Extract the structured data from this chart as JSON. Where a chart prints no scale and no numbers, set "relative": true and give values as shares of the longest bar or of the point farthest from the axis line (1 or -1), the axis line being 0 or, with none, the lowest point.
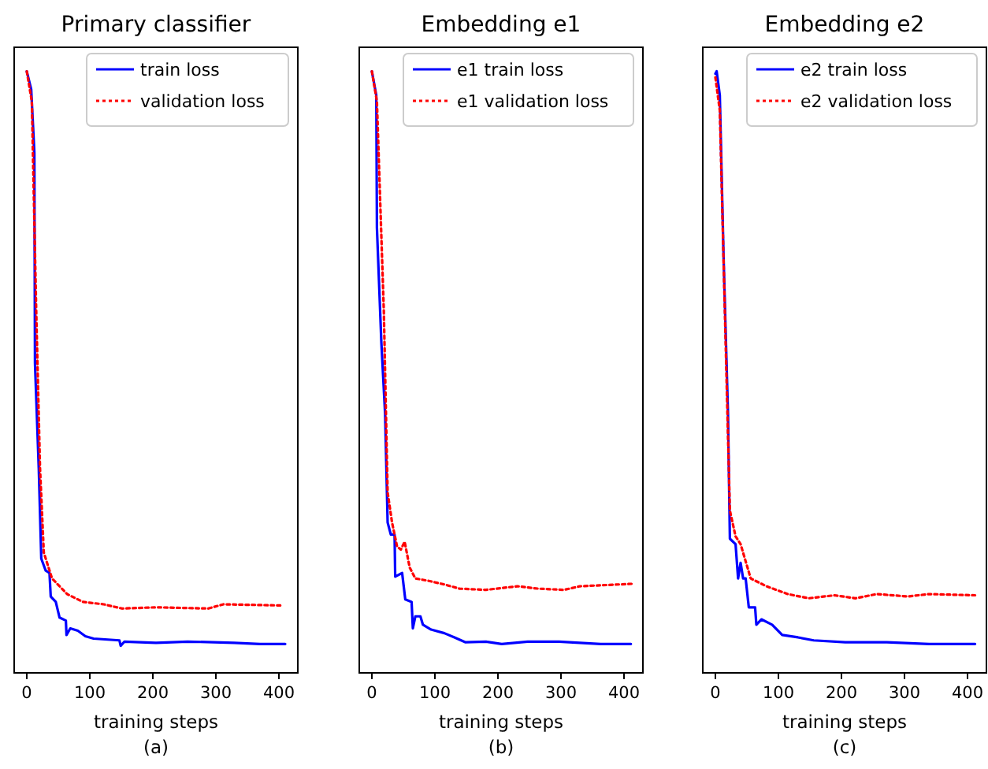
{
  "chart_data": [
    {
      "type": "line",
      "title": "Primary classifier",
      "xlabel": "training steps",
      "annotations": [
        "(a)"
      ],
      "relative": true,
      "xlim": [
        -20,
        430
      ],
      "xticks": [
        0,
        100,
        200,
        300,
        400
      ],
      "legend": "top right",
      "series": [
        {
          "name": "train loss",
          "color": "#0000ff",
          "line_style": "solid",
          "x": [
            0,
            7,
            12,
            13,
            19,
            23,
            30,
            36,
            38,
            46,
            52,
            62,
            63,
            69,
            81,
            93,
            106,
            147,
            149,
            155,
            205,
            255,
            329,
            370,
            410
          ],
          "values": [
            1.0,
            0.97,
            0.865,
            0.515,
            0.34,
            0.19,
            0.17,
            0.166,
            0.127,
            0.118,
            0.092,
            0.087,
            0.063,
            0.074,
            0.07,
            0.061,
            0.057,
            0.054,
            0.045,
            0.052,
            0.05,
            0.052,
            0.05,
            0.048,
            0.048
          ]
        },
        {
          "name": "validation loss",
          "color": "#ff0000",
          "line_style": "dotted",
          "x": [
            0,
            8,
            15,
            21,
            27,
            40,
            64,
            89,
            122,
            151,
            205,
            288,
            312,
            407
          ],
          "values": [
            1.0,
            0.95,
            0.6,
            0.34,
            0.2,
            0.157,
            0.131,
            0.118,
            0.114,
            0.107,
            0.109,
            0.107,
            0.114,
            0.112
          ]
        }
      ]
    },
    {
      "type": "line",
      "title": "Embedding e1",
      "xlabel": "training steps",
      "annotations": [
        "(b)"
      ],
      "relative": true,
      "xlim": [
        -20,
        430
      ],
      "xticks": [
        0,
        100,
        200,
        300,
        400
      ],
      "legend": "top right",
      "series": [
        {
          "name": "e1 train loss",
          "color": "#0000ff",
          "line_style": "solid",
          "x": [
            0,
            7,
            8,
            15,
            21,
            25,
            30,
            36,
            37,
            48,
            53,
            63,
            65,
            69,
            77,
            81,
            94,
            115,
            131,
            148,
            181,
            206,
            247,
            297,
            330,
            363,
            411
          ],
          "values": [
            1.0,
            0.96,
            0.74,
            0.55,
            0.43,
            0.25,
            0.23,
            0.23,
            0.16,
            0.166,
            0.122,
            0.118,
            0.074,
            0.094,
            0.094,
            0.08,
            0.072,
            0.066,
            0.059,
            0.051,
            0.052,
            0.048,
            0.052,
            0.052,
            0.05,
            0.048,
            0.048
          ]
        },
        {
          "name": "e1 validation loss",
          "color": "#ff0000",
          "line_style": "dotted",
          "x": [
            0,
            8,
            19,
            25,
            32,
            40,
            46,
            52,
            60,
            69,
            90,
            115,
            139,
            181,
            231,
            264,
            305,
            330,
            412
          ],
          "values": [
            1.0,
            0.95,
            0.6,
            0.3,
            0.25,
            0.21,
            0.205,
            0.218,
            0.175,
            0.157,
            0.153,
            0.147,
            0.14,
            0.138,
            0.144,
            0.14,
            0.138,
            0.144,
            0.148
          ]
        }
      ]
    },
    {
      "type": "line",
      "title": "Embedding e2",
      "xlabel": "training steps",
      "annotations": [
        "(c)"
      ],
      "relative": true,
      "xlim": [
        -20,
        430
      ],
      "xticks": [
        0,
        100,
        200,
        300,
        400
      ],
      "legend": "top right",
      "series": [
        {
          "name": "e2 train loss",
          "color": "#0000ff",
          "line_style": "solid",
          "x": [
            0,
            2,
            7,
            13,
            20,
            23,
            32,
            36,
            40,
            44,
            48,
            53,
            63,
            65,
            73,
            90,
            106,
            131,
            156,
            206,
            272,
            339,
            412
          ],
          "values": [
            0.996,
            1.0,
            0.96,
            0.69,
            0.43,
            0.223,
            0.214,
            0.157,
            0.183,
            0.157,
            0.157,
            0.109,
            0.109,
            0.08,
            0.089,
            0.08,
            0.063,
            0.059,
            0.054,
            0.051,
            0.051,
            0.048,
            0.048
          ]
        },
        {
          "name": "e2 validation loss",
          "color": "#ff0000",
          "line_style": "dotted",
          "x": [
            0,
            7,
            15,
            23,
            32,
            40,
            56,
            81,
            115,
            148,
            189,
            222,
            256,
            305,
            339,
            412
          ],
          "values": [
            0.99,
            0.935,
            0.6,
            0.27,
            0.227,
            0.214,
            0.157,
            0.144,
            0.131,
            0.124,
            0.129,
            0.124,
            0.131,
            0.127,
            0.131,
            0.129
          ]
        }
      ]
    }
  ]
}
